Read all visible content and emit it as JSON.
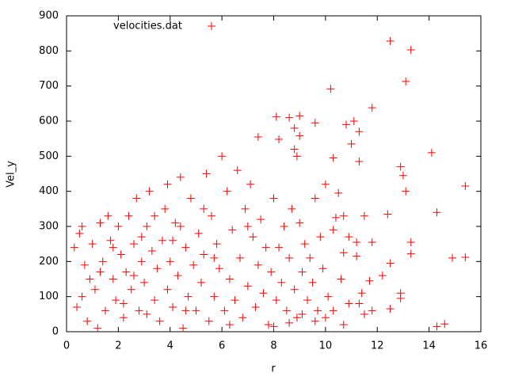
{
  "chart_data": {
    "type": "scatter",
    "x_label": "r",
    "y_label": "Vel_y",
    "xlim": [
      0,
      16
    ],
    "ylim": [
      0,
      900
    ],
    "xticks": [
      0,
      2,
      4,
      6,
      8,
      10,
      12,
      14,
      16
    ],
    "yticks": [
      0,
      100,
      200,
      300,
      400,
      500,
      600,
      700,
      800,
      900
    ],
    "grid": false,
    "legend": "top-left",
    "marker": "+",
    "series": [
      {
        "name": "velocities.dat",
        "color": "#ff0000",
        "x": [
          12.5,
          13.3,
          13.1,
          10.2,
          11.8,
          14.1,
          15.4,
          14.3,
          14.9,
          15.4,
          14.3,
          14.6,
          13.3,
          13.3,
          12.4,
          12.9,
          13,
          13.1,
          12.5,
          12.9,
          12.9,
          12.5,
          12.2,
          11.1,
          11.3,
          10.8,
          11,
          11.3,
          10.3,
          10.5,
          9.6,
          9,
          8.6,
          8.1,
          7.4,
          8.2,
          8.8,
          9,
          8.9,
          8.8,
          10.7,
          10.4,
          11.5,
          11.8,
          11.2,
          11.2,
          10.7,
          11.7,
          11.3,
          10.9,
          10.7,
          11.8,
          11.5,
          10.3,
          10,
          9.6,
          9.1,
          8.6,
          8,
          0.3,
          0.4,
          0.5,
          0.6,
          0.7,
          0.6,
          0.8,
          0.9,
          1,
          1.1,
          1.2,
          1.3,
          1.4,
          1.5,
          1.6,
          1.7,
          1.8,
          1.9,
          2,
          2.1,
          2.2,
          2.3,
          2.4,
          2.5,
          2.6,
          2.7,
          2.8,
          2.9,
          3,
          3.1,
          3.2,
          3.3,
          3.4,
          3.5,
          3.6,
          3.7,
          3.8,
          3.9,
          4,
          4.1,
          4.2,
          4.3,
          4.4,
          4.5,
          4.6,
          4.7,
          4.8,
          4.9,
          5,
          5.1,
          5.2,
          5.3,
          5.4,
          5.5,
          5.6,
          5.7,
          5.8,
          5.9,
          6,
          6.1,
          6.2,
          6.3,
          6.4,
          6.5,
          6.6,
          6.7,
          6.8,
          6.9,
          7,
          7.1,
          7.2,
          7.3,
          7.4,
          7.5,
          7.6,
          7.7,
          7.8,
          7.9,
          8,
          8.1,
          8.2,
          8.3,
          8.4,
          8.5,
          8.6,
          8.7,
          8.8,
          8.9,
          9,
          9.1,
          9.2,
          9.3,
          9.4,
          9.5,
          9.6,
          9.7,
          9.8,
          9.9,
          10,
          10.1,
          10.3,
          10.6,
          10.9,
          11.4,
          1.3,
          2.2,
          3.4,
          4.1,
          4.6,
          5.3,
          2.6,
          3.9,
          4.4,
          5.7,
          6.3,
          7,
          1.8,
          3.1,
          2.9
        ],
        "values": [
          828,
          803,
          713,
          692,
          638,
          510,
          415,
          340,
          210,
          212,
          15,
          22,
          255,
          222,
          335,
          470,
          445,
          400,
          195,
          110,
          95,
          65,
          160,
          600,
          570,
          590,
          535,
          485,
          495,
          395,
          595,
          615,
          610,
          612,
          555,
          548,
          580,
          558,
          500,
          520,
          330,
          325,
          330,
          255,
          255,
          215,
          225,
          145,
          80,
          80,
          20,
          60,
          50,
          60,
          40,
          30,
          50,
          25,
          15,
          240,
          70,
          280,
          300,
          190,
          100,
          30,
          150,
          250,
          120,
          10,
          310,
          200,
          60,
          330,
          260,
          150,
          90,
          300,
          220,
          40,
          170,
          330,
          120,
          250,
          380,
          60,
          200,
          140,
          300,
          400,
          230,
          90,
          180,
          30,
          260,
          350,
          120,
          200,
          70,
          310,
          160,
          440,
          10,
          240,
          100,
          380,
          190,
          60,
          280,
          140,
          220,
          450,
          30,
          330,
          100,
          250,
          180,
          500,
          60,
          400,
          150,
          290,
          90,
          460,
          210,
          40,
          350,
          130,
          420,
          270,
          70,
          190,
          320,
          110,
          240,
          20,
          170,
          380,
          90,
          240,
          140,
          300,
          60,
          210,
          350,
          120,
          40,
          310,
          170,
          250,
          90,
          210,
          140,
          380,
          60,
          270,
          180,
          420,
          100,
          290,
          150,
          270,
          110,
          170,
          80,
          330,
          260,
          60,
          350,
          160,
          420,
          300,
          210,
          20,
          300,
          240,
          50,
          270
        ]
      }
    ]
  }
}
